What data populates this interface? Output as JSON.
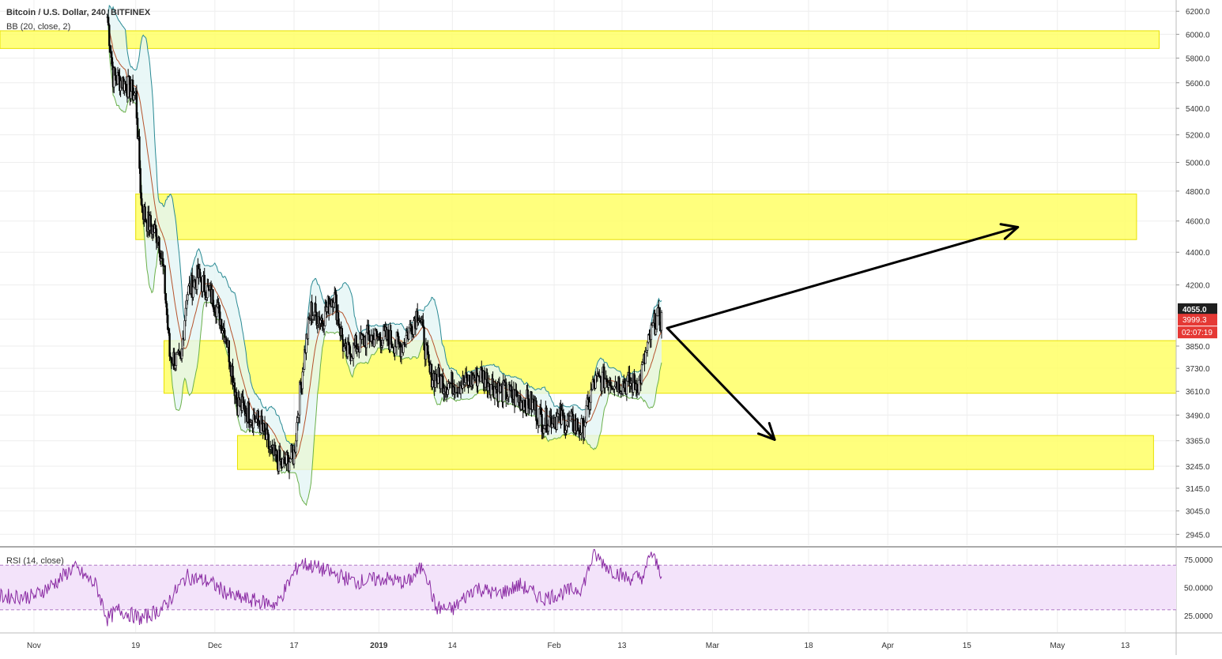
{
  "header": {
    "symbol": "Bitcoin / U.S. Dollar, 240, BITFINEX",
    "bb_indicator": "BB (20, close, 2)",
    "rsi_indicator": "RSI (14, close)"
  },
  "colors": {
    "candle_body": "#000000",
    "bb_band": "#2a8a94",
    "bb_lower": "#6bb04a",
    "bb_basis": "#b5532c",
    "bb_fill": "#e3f5f5",
    "zone_fill": "#ffff66",
    "rsi_line": "#8a2ba3",
    "rsi_band_fill": "#f3e3fa",
    "price_label": "#1f1f1f",
    "price_label_red": "#e53935",
    "grid": "#eeeeee"
  },
  "chart_data": [
    {
      "type": "candlestick",
      "name": "Bitcoin / U.S. Dollar, 240, BITFINEX",
      "x_axis_labels": [
        "Nov",
        "19",
        "Dec",
        "17",
        "2019",
        "14",
        "Feb",
        "13",
        "Mar",
        "18",
        "Apr",
        "15",
        "May",
        "13"
      ],
      "x_tick_dates": [
        "2018-11-01",
        "2018-11-19",
        "2018-12-03",
        "2018-12-17",
        "2019-01-01",
        "2019-01-14",
        "2019-02-01",
        "2019-02-13",
        "2019-03-01",
        "2019-03-18",
        "2019-04-01",
        "2019-04-15",
        "2019-05-01",
        "2019-05-13"
      ],
      "y_ticks": [
        2945,
        3045,
        3145,
        3245,
        3365,
        3490,
        3610,
        3730,
        3850,
        4000,
        4200,
        4400,
        4600,
        4800,
        5000,
        5200,
        5400,
        5600,
        5800,
        6000,
        6200
      ],
      "y_tick_labels": [
        "2945.0",
        "3045.0",
        "3145.0",
        "3245.0",
        "3365.0",
        "3490.0",
        "3610.0",
        "3730.0",
        "3850.0",
        "",
        "4200.0",
        "4400.0",
        "4600.0",
        "4800.0",
        "5000.0",
        "5200.0",
        "5400.0",
        "5600.0",
        "5800.0",
        "6000.0",
        "6200.0"
      ],
      "y_scale": "log",
      "ylim": [
        2900,
        6300
      ],
      "xlim": [
        "2018-10-26",
        "2019-05-22"
      ],
      "price_path": [
        {
          "date": "2018-11-14",
          "price": 6150
        },
        {
          "date": "2018-11-15",
          "price": 5650
        },
        {
          "date": "2018-11-17",
          "price": 5600
        },
        {
          "date": "2018-11-19",
          "price": 5500
        },
        {
          "date": "2018-11-20",
          "price": 4700
        },
        {
          "date": "2018-11-21",
          "price": 4600
        },
        {
          "date": "2018-11-23",
          "price": 4500
        },
        {
          "date": "2018-11-24",
          "price": 4250
        },
        {
          "date": "2018-11-25",
          "price": 3800
        },
        {
          "date": "2018-11-27",
          "price": 3750
        },
        {
          "date": "2018-11-28",
          "price": 4150
        },
        {
          "date": "2018-11-30",
          "price": 4250
        },
        {
          "date": "2018-12-01",
          "price": 4200
        },
        {
          "date": "2018-12-03",
          "price": 4100
        },
        {
          "date": "2018-12-05",
          "price": 3900
        },
        {
          "date": "2018-12-07",
          "price": 3550
        },
        {
          "date": "2018-12-09",
          "price": 3500
        },
        {
          "date": "2018-12-11",
          "price": 3450
        },
        {
          "date": "2018-12-13",
          "price": 3300
        },
        {
          "date": "2018-12-15",
          "price": 3250
        },
        {
          "date": "2018-12-17",
          "price": 3300
        },
        {
          "date": "2018-12-18",
          "price": 3600
        },
        {
          "date": "2018-12-19",
          "price": 3850
        },
        {
          "date": "2018-12-20",
          "price": 4050
        },
        {
          "date": "2018-12-22",
          "price": 4000
        },
        {
          "date": "2018-12-24",
          "price": 4150
        },
        {
          "date": "2018-12-26",
          "price": 3800
        },
        {
          "date": "2018-12-28",
          "price": 3850
        },
        {
          "date": "2018-12-30",
          "price": 3900
        },
        {
          "date": "2019-01-02",
          "price": 3900
        },
        {
          "date": "2019-01-05",
          "price": 3850
        },
        {
          "date": "2019-01-08",
          "price": 4050
        },
        {
          "date": "2019-01-10",
          "price": 3700
        },
        {
          "date": "2019-01-13",
          "price": 3650
        },
        {
          "date": "2019-01-16",
          "price": 3650
        },
        {
          "date": "2019-01-19",
          "price": 3700
        },
        {
          "date": "2019-01-22",
          "price": 3620
        },
        {
          "date": "2019-01-25",
          "price": 3580
        },
        {
          "date": "2019-01-28",
          "price": 3550
        },
        {
          "date": "2019-01-30",
          "price": 3460
        },
        {
          "date": "2019-02-01",
          "price": 3480
        },
        {
          "date": "2019-02-04",
          "price": 3450
        },
        {
          "date": "2019-02-06",
          "price": 3420
        },
        {
          "date": "2019-02-08",
          "price": 3650
        },
        {
          "date": "2019-02-10",
          "price": 3680
        },
        {
          "date": "2019-02-13",
          "price": 3650
        },
        {
          "date": "2019-02-16",
          "price": 3650
        },
        {
          "date": "2019-02-18",
          "price": 3900
        },
        {
          "date": "2019-02-19",
          "price": 4000
        },
        {
          "date": "2019-02-20",
          "price": 3999.3
        }
      ],
      "support_resistance_zones": [
        {
          "from": 5880,
          "to": 6030,
          "start": "2018-10-26",
          "end": "2019-05-19"
        },
        {
          "from": 4480,
          "to": 4780,
          "start": "2018-11-19",
          "end": "2019-05-15"
        },
        {
          "from": 3600,
          "to": 3880,
          "start": "2018-11-24",
          "end": "2019-05-22"
        },
        {
          "from": 3230,
          "to": 3390,
          "start": "2018-12-07",
          "end": "2019-05-18"
        }
      ],
      "projection_arrows": [
        {
          "from_date": "2019-02-21",
          "from_price": 3950,
          "to_date": "2019-04-24",
          "to_price": 4560
        },
        {
          "from_date": "2019-02-21",
          "from_price": 3950,
          "to_date": "2019-03-12",
          "to_price": 3370
        }
      ],
      "markers": {
        "last_price_label": "3999.3",
        "countdown_label": "02:07:19",
        "high_label": "4055.0"
      }
    },
    {
      "type": "line",
      "name": "RSI (14, close)",
      "y_ticks": [
        25,
        50,
        75
      ],
      "y_tick_labels": [
        "25.0000",
        "50.0000",
        "75.0000"
      ],
      "ylim": [
        10,
        85
      ],
      "band": [
        30,
        70
      ],
      "series": [
        {
          "values": [
            {
              "date": "2018-11-01",
              "value": 42
            },
            {
              "date": "2018-11-05",
              "value": 55
            },
            {
              "date": "2018-11-08",
              "value": 68
            },
            {
              "date": "2018-11-12",
              "value": 52
            },
            {
              "date": "2018-11-14",
              "value": 22
            },
            {
              "date": "2018-11-16",
              "value": 30
            },
            {
              "date": "2018-11-20",
              "value": 22
            },
            {
              "date": "2018-11-24",
              "value": 32
            },
            {
              "date": "2018-11-28",
              "value": 60
            },
            {
              "date": "2018-12-02",
              "value": 55
            },
            {
              "date": "2018-12-06",
              "value": 42
            },
            {
              "date": "2018-12-10",
              "value": 38
            },
            {
              "date": "2018-12-14",
              "value": 35
            },
            {
              "date": "2018-12-18",
              "value": 72
            },
            {
              "date": "2018-12-21",
              "value": 68
            },
            {
              "date": "2018-12-24",
              "value": 62
            },
            {
              "date": "2018-12-28",
              "value": 55
            },
            {
              "date": "2019-01-02",
              "value": 58
            },
            {
              "date": "2019-01-06",
              "value": 54
            },
            {
              "date": "2019-01-09",
              "value": 70
            },
            {
              "date": "2019-01-11",
              "value": 32
            },
            {
              "date": "2019-01-14",
              "value": 30
            },
            {
              "date": "2019-01-18",
              "value": 50
            },
            {
              "date": "2019-01-22",
              "value": 44
            },
            {
              "date": "2019-01-26",
              "value": 52
            },
            {
              "date": "2019-01-30",
              "value": 40
            },
            {
              "date": "2019-02-03",
              "value": 46
            },
            {
              "date": "2019-02-06",
              "value": 50
            },
            {
              "date": "2019-02-08",
              "value": 80
            },
            {
              "date": "2019-02-11",
              "value": 66
            },
            {
              "date": "2019-02-14",
              "value": 58
            },
            {
              "date": "2019-02-17",
              "value": 60
            },
            {
              "date": "2019-02-18",
              "value": 82
            },
            {
              "date": "2019-02-19",
              "value": 72
            },
            {
              "date": "2019-02-20",
              "value": 62
            }
          ]
        }
      ]
    }
  ]
}
